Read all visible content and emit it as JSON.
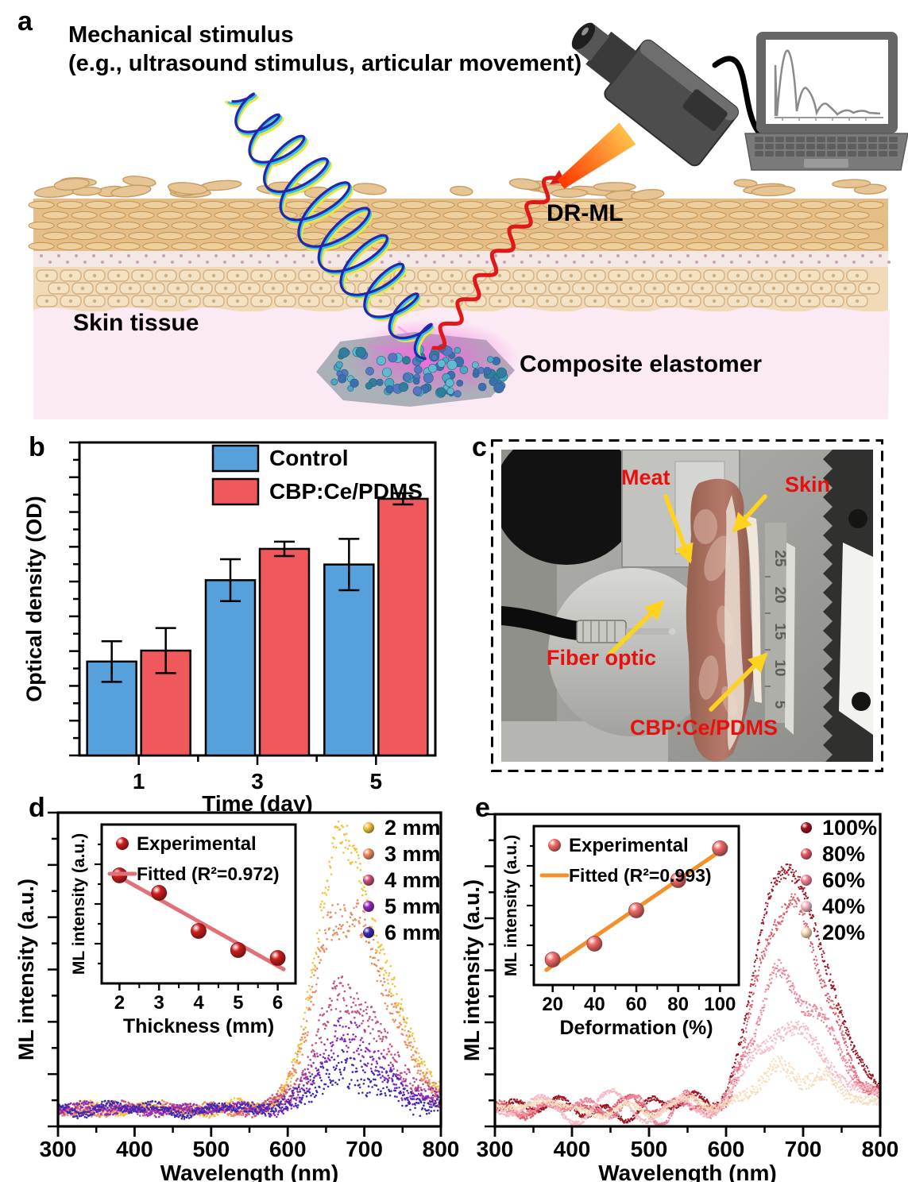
{
  "figure": {
    "panels": {
      "a": {
        "label": "a",
        "title_line1": "Mechanical stimulus",
        "title_line2": "(e.g., ultrasound stimulus, articular movement)",
        "dr_ml": "DR-ML",
        "skin_tissue": "Skin tissue",
        "composite_elastomer": "Composite elastomer"
      },
      "b": {
        "label": "b"
      },
      "c": {
        "label": "c",
        "annotations": {
          "meat": "Meat",
          "skin": "Skin",
          "fiber_optic": "Fiber optic",
          "cbp": "CBP:Ce/PDMS"
        },
        "ruler_numbers": [
          "25",
          "20",
          "15",
          "10",
          "5"
        ]
      },
      "d": {
        "label": "d"
      },
      "e": {
        "label": "e"
      }
    }
  },
  "chart_data": [
    {
      "id": "b",
      "type": "bar",
      "xlabel": "Time (day)",
      "ylabel": "Optical density (OD)",
      "categories": [
        "1",
        "3",
        "5"
      ],
      "series": [
        {
          "name": "Control",
          "color": "#56A0DC",
          "values": [
            0.3,
            0.56,
            0.61
          ],
          "errors": [
            0.065,
            0.067,
            0.082
          ]
        },
        {
          "name": "CBP:Ce/PDMS",
          "color": "#F0595C",
          "values": [
            0.335,
            0.66,
            0.82
          ],
          "errors": [
            0.072,
            0.023,
            0.018
          ]
        }
      ],
      "ylim": [
        0,
        1
      ],
      "y_ticks_unlabeled": true,
      "legend_position": "top-center",
      "values_note": "relative OD, y axis has unlabeled ticks"
    },
    {
      "id": "d_main",
      "type": "scatter",
      "xlabel": "Wavelength (nm)",
      "ylabel": "ML intensity (a.u.)",
      "xlim": [
        300,
        800
      ],
      "xticks": [
        300,
        400,
        500,
        600,
        700,
        800
      ],
      "peak": {
        "center_nm": 668,
        "sigma_left": 46,
        "sigma_right": 82
      },
      "baseline_level": 0.055,
      "series": [
        {
          "name": "2 mm",
          "color": "#F4C13E",
          "peak_height": 0.8
        },
        {
          "name": "3 mm",
          "color": "#EE8A5E",
          "peak_height": 0.66
        },
        {
          "name": "4 mm",
          "color": "#C84F7E",
          "peak_height": 0.35
        },
        {
          "name": "5 mm",
          "color": "#8F2ABC",
          "peak_height": 0.22
        },
        {
          "name": "6 mm",
          "color": "#3A2BB2",
          "peak_height": 0.13
        }
      ],
      "legend_position": "top-right"
    },
    {
      "id": "d_inset",
      "type": "scatter",
      "xlabel": "Thickness (mm)",
      "ylabel": "ML intensity (a.u.)",
      "x": [
        2,
        3,
        4,
        5,
        6
      ],
      "y": [
        0.68,
        0.57,
        0.33,
        0.21,
        0.16
      ],
      "xticks": [
        2,
        3,
        4,
        5,
        6
      ],
      "legend": {
        "points": "Experimental",
        "fit": "Fitted (R²=0.972)"
      },
      "fit_r2": 0.972,
      "point_color": "#CC1E1E",
      "fit_color": "#E17078"
    },
    {
      "id": "e_main",
      "type": "scatter",
      "xlabel": "Wavelength (nm)",
      "ylabel": "ML intensity (a.u.)",
      "xlim": [
        300,
        800
      ],
      "xticks": [
        300,
        400,
        500,
        600,
        700,
        800
      ],
      "peak": {
        "center_nm": 670,
        "sigma_left": 45,
        "sigma_right": 80
      },
      "baseline_level": 0.06,
      "series": [
        {
          "name": "100%",
          "color": "#A01220",
          "peak_height": 0.78
        },
        {
          "name": "80%",
          "color": "#E25B68",
          "peak_height": 0.62
        },
        {
          "name": "60%",
          "color": "#EE8396",
          "peak_height": 0.43
        },
        {
          "name": "40%",
          "color": "#F5B9C3",
          "peak_height": 0.27
        },
        {
          "name": "20%",
          "color": "#F7DCBD",
          "peak_height": 0.13
        }
      ],
      "legend_position": "top-right"
    },
    {
      "id": "e_inset",
      "type": "scatter",
      "xlabel": "Deformation (%)",
      "ylabel": "ML intensity (a.u.)",
      "x": [
        20,
        40,
        60,
        80,
        100
      ],
      "y": [
        0.16,
        0.26,
        0.47,
        0.66,
        0.86
      ],
      "xticks": [
        20,
        40,
        60,
        80,
        100
      ],
      "legend": {
        "points": "Experimental",
        "fit": "Fitted (R²=0.993)"
      },
      "fit_r2": 0.993,
      "point_color": "#EF6A66",
      "fit_color": "#F2912B"
    }
  ]
}
